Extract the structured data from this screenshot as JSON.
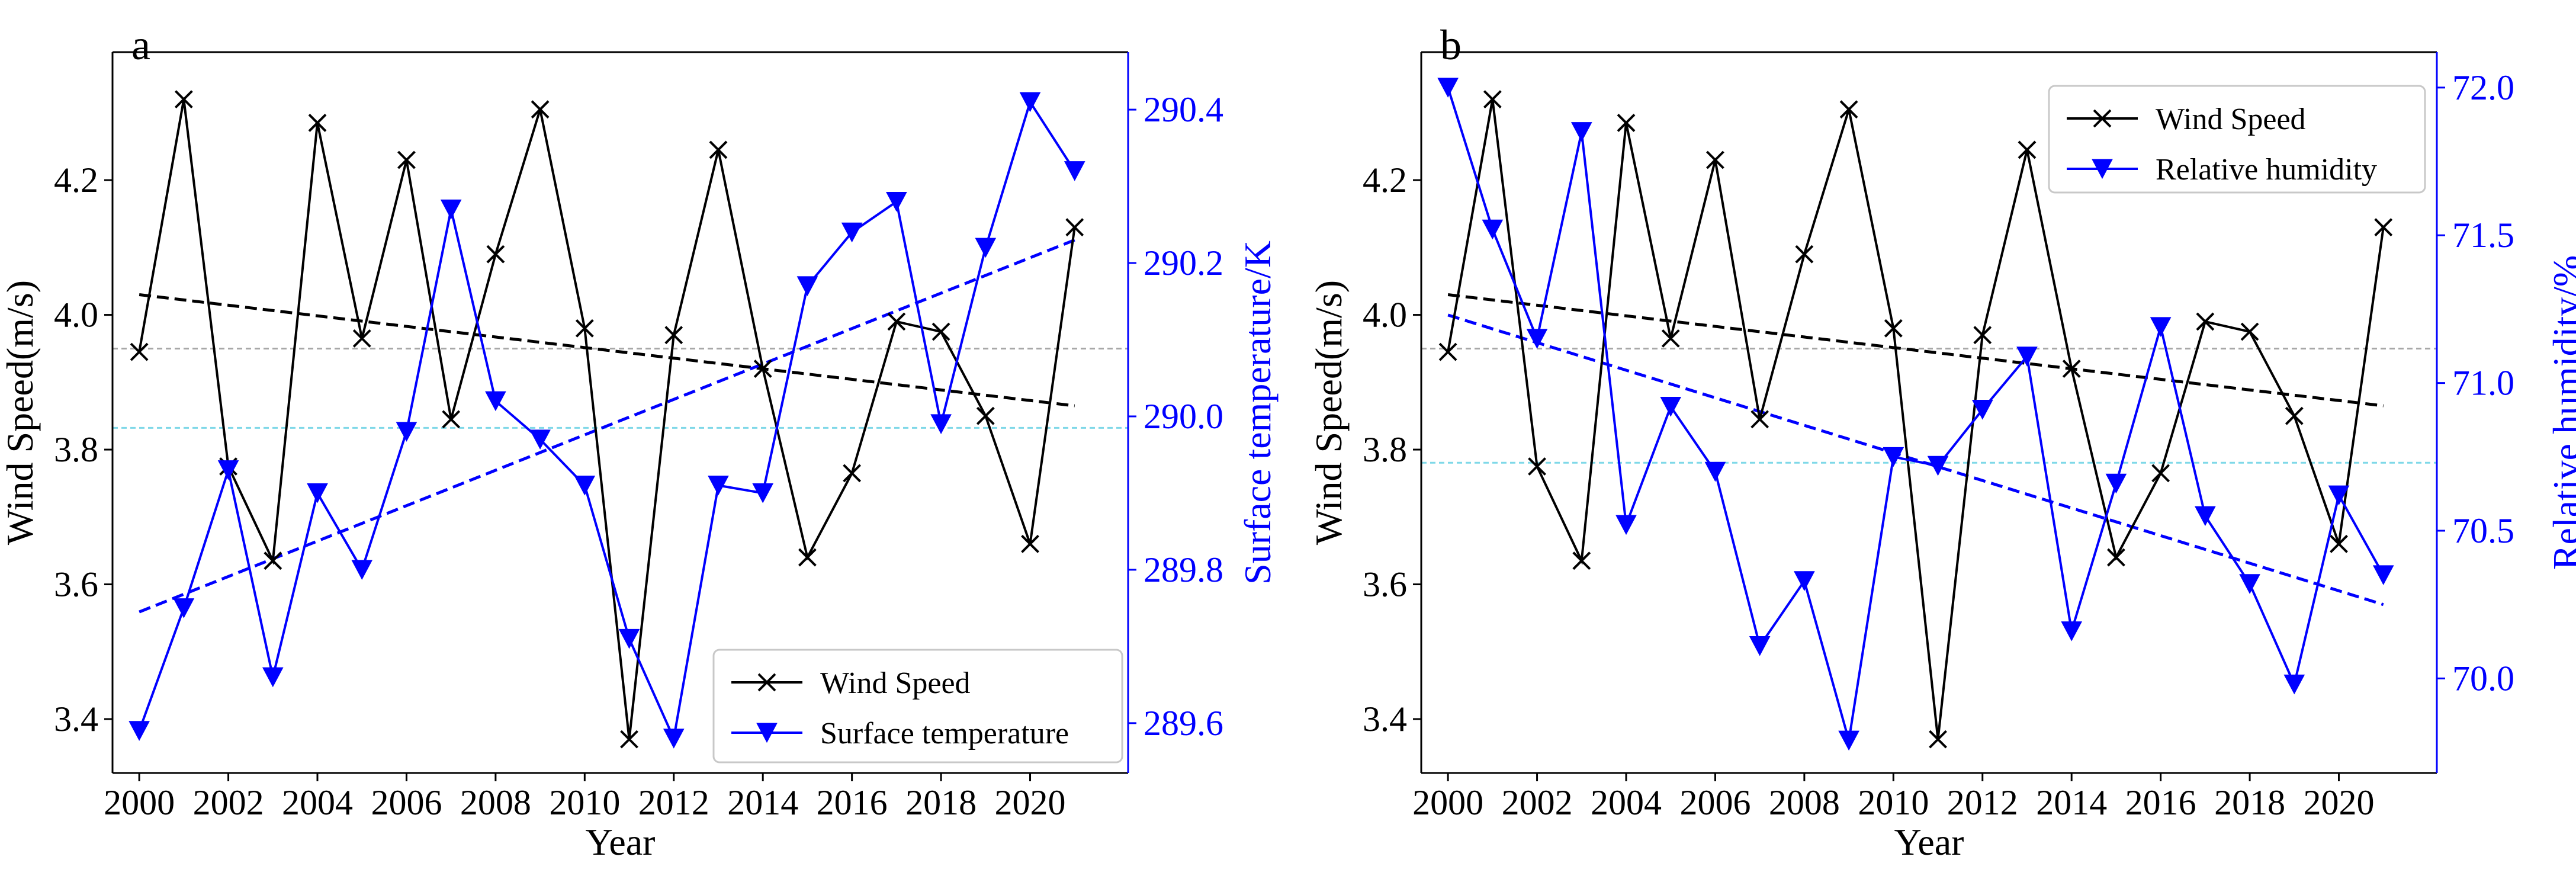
{
  "chart_data": [
    {
      "type": "line",
      "panel_label": "a",
      "xlabel": "Year",
      "ylabel_left": "Wind Speed(m/s)",
      "ylabel_right": "Surface temperature/K",
      "x": [
        2000,
        2001,
        2002,
        2003,
        2004,
        2005,
        2006,
        2007,
        2008,
        2009,
        2010,
        2011,
        2012,
        2013,
        2014,
        2015,
        2016,
        2017,
        2018,
        2019,
        2020,
        2021
      ],
      "x_ticks": [
        "2000",
        "2002",
        "2004",
        "2006",
        "2008",
        "2010",
        "2012",
        "2014",
        "2016",
        "2018",
        "2020"
      ],
      "xlim": [
        1999.4,
        2022.2
      ],
      "ylim_left": [
        3.32,
        4.39
      ],
      "ylim_right": [
        289.535,
        290.475
      ],
      "y_ticks_left": [
        "3.4",
        "3.6",
        "3.8",
        "4.0",
        "4.2"
      ],
      "y_ticks_right": [
        "289.6",
        "289.8",
        "290.0",
        "290.2",
        "290.4"
      ],
      "series": [
        {
          "name": "Wind Speed",
          "axis": "left",
          "color": "#000000",
          "marker": "x",
          "values": [
            3.945,
            4.32,
            3.775,
            3.635,
            4.285,
            3.965,
            4.23,
            3.845,
            4.09,
            4.305,
            3.98,
            3.37,
            3.97,
            4.245,
            3.92,
            3.64,
            3.765,
            3.99,
            3.975,
            3.85,
            3.66,
            4.13
          ],
          "trend": [
            4.03,
            3.865
          ],
          "mean": 3.95,
          "mean_color": "#a8a8a8"
        },
        {
          "name": "Surface temperature",
          "axis": "right",
          "color": "#0000ff",
          "marker": "triangle-down",
          "values": [
            289.59,
            289.75,
            289.93,
            289.66,
            289.9,
            289.8,
            289.98,
            290.27,
            290.02,
            289.97,
            289.91,
            289.71,
            289.58,
            289.91,
            289.9,
            290.17,
            290.24,
            290.28,
            289.99,
            290.22,
            290.41,
            290.32
          ],
          "trend": [
            289.745,
            290.23
          ],
          "mean": 289.985,
          "mean_color": "#7fd8e8"
        }
      ],
      "legend": {
        "position": "bottom-right",
        "entries": [
          "Wind Speed",
          "Surface temperature"
        ]
      }
    },
    {
      "type": "line",
      "panel_label": "b",
      "xlabel": "Year",
      "ylabel_left": "Wind Speed(m/s)",
      "ylabel_right": "Relative humidity/%",
      "x": [
        2000,
        2001,
        2002,
        2003,
        2004,
        2005,
        2006,
        2007,
        2008,
        2009,
        2010,
        2011,
        2012,
        2013,
        2014,
        2015,
        2016,
        2017,
        2018,
        2019,
        2020,
        2021
      ],
      "x_ticks": [
        "2000",
        "2002",
        "2004",
        "2006",
        "2008",
        "2010",
        "2012",
        "2014",
        "2016",
        "2018",
        "2020"
      ],
      "xlim": [
        1999.4,
        2022.2
      ],
      "ylim_left": [
        3.32,
        4.39
      ],
      "ylim_right": [
        69.68,
        72.12
      ],
      "y_ticks_left": [
        "3.4",
        "3.6",
        "3.8",
        "4.0",
        "4.2"
      ],
      "y_ticks_right": [
        "70.0",
        "70.5",
        "71.0",
        "71.5",
        "72.0"
      ],
      "series": [
        {
          "name": "Wind Speed",
          "axis": "left",
          "color": "#000000",
          "marker": "x",
          "values": [
            3.945,
            4.32,
            3.775,
            3.635,
            4.285,
            3.965,
            4.23,
            3.845,
            4.09,
            4.305,
            3.98,
            3.37,
            3.97,
            4.245,
            3.92,
            3.64,
            3.765,
            3.99,
            3.975,
            3.85,
            3.66,
            4.13
          ],
          "trend": [
            4.03,
            3.865
          ],
          "mean": 3.95,
          "mean_color": "#a8a8a8"
        },
        {
          "name": "Relative humidity",
          "axis": "right",
          "color": "#0000ff",
          "marker": "triangle-down",
          "values": [
            72.0,
            71.52,
            71.15,
            71.85,
            70.52,
            70.92,
            70.7,
            70.11,
            70.33,
            69.79,
            70.75,
            70.72,
            70.91,
            71.09,
            70.16,
            70.66,
            71.19,
            70.55,
            70.32,
            69.98,
            70.62,
            70.35
          ],
          "trend": [
            71.23,
            70.25
          ],
          "mean": 70.73,
          "mean_color": "#7fd8e8"
        }
      ],
      "legend": {
        "position": "top-right",
        "entries": [
          "Wind Speed",
          "Relative humidity"
        ]
      }
    }
  ]
}
